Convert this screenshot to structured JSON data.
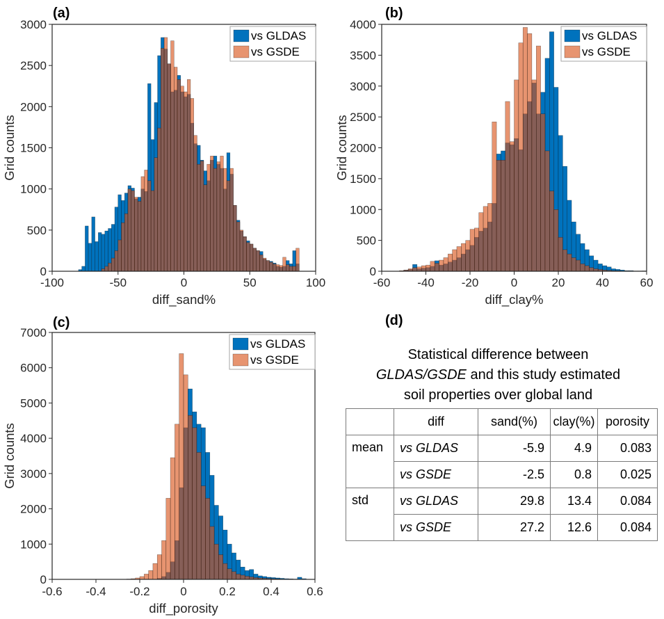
{
  "figure": {
    "background": "#ffffff",
    "axis_color": "#262626",
    "bar_edge_color": "rgba(0,0,0,0.5)",
    "legend_border_color": "#a6a6a6",
    "table_border_color": "#7a7a7a"
  },
  "chart_data": [
    {
      "type": "bar",
      "subtype": "histogram-overlay",
      "panel_label": "(a)",
      "xlabel": "diff_sand%",
      "ylabel": "Grid counts",
      "xlim": [
        -100,
        100
      ],
      "ylim": [
        0,
        3000
      ],
      "xticks": [
        -100,
        -50,
        0,
        50,
        100
      ],
      "xtick_labels": [
        "-100",
        "-50",
        "0",
        "50",
        "100"
      ],
      "yticks": [
        0,
        500,
        1000,
        1500,
        2000,
        2500,
        3000
      ],
      "grid": false,
      "legend_position": "top-right",
      "bin_start": -80,
      "bin_width": 2.5,
      "series": [
        {
          "name": "vs GLDAS",
          "color": "#0072BD",
          "opacity": 1,
          "values": [
            20,
            60,
            550,
            340,
            660,
            360,
            470,
            450,
            490,
            520,
            570,
            780,
            930,
            860,
            950,
            1040,
            1010,
            880,
            900,
            1000,
            970,
            2280,
            1600,
            2050,
            2620,
            2840,
            2700,
            2520,
            2180,
            2200,
            2380,
            2180,
            2120,
            2150,
            1800,
            1550,
            1530,
            1350,
            1220,
            1100,
            1350,
            1400,
            1300,
            1250,
            1000,
            1440,
            1180,
            800,
            620,
            490,
            420,
            370,
            330,
            280,
            250,
            240,
            150,
            130,
            120,
            100,
            60,
            50,
            60,
            130,
            90,
            250,
            90,
            0
          ]
        },
        {
          "name": "vs GSDE",
          "color": "#D95319",
          "opacity": 0.62,
          "values": [
            0,
            0,
            0,
            0,
            0,
            0,
            0,
            30,
            60,
            100,
            160,
            250,
            380,
            590,
            700,
            1000,
            980,
            900,
            850,
            1150,
            1230,
            1100,
            980,
            1380,
            1740,
            2710,
            2840,
            2520,
            2800,
            2480,
            2330,
            2250,
            2180,
            2330,
            2100,
            1650,
            1300,
            1340,
            1050,
            1300,
            1400,
            1250,
            1330,
            1400,
            1250,
            1100,
            1250,
            800,
            600,
            500,
            420,
            350,
            330,
            280,
            250,
            200,
            160,
            130,
            110,
            90,
            80,
            70,
            170,
            80,
            60,
            60,
            280,
            0
          ]
        }
      ]
    },
    {
      "type": "bar",
      "subtype": "histogram-overlay",
      "panel_label": "(b)",
      "xlabel": "diff_clay%",
      "ylabel": "Grid counts",
      "xlim": [
        -60,
        60
      ],
      "ylim": [
        0,
        4000
      ],
      "xticks": [
        -60,
        -40,
        -20,
        0,
        20,
        40,
        60
      ],
      "xtick_labels": [
        "-60",
        "-40",
        "-20",
        "0",
        "20",
        "40",
        "60"
      ],
      "yticks": [
        0,
        500,
        1000,
        1500,
        2000,
        2500,
        3000,
        3500,
        4000
      ],
      "grid": false,
      "legend_position": "top-right",
      "bin_start": -52,
      "bin_width": 2,
      "series": [
        {
          "name": "vs GLDAS",
          "color": "#0072BD",
          "opacity": 1,
          "values": [
            0,
            20,
            30,
            110,
            40,
            50,
            60,
            80,
            170,
            100,
            120,
            150,
            180,
            220,
            280,
            350,
            420,
            550,
            650,
            700,
            800,
            1100,
            1900,
            1950,
            2080,
            2050,
            2150,
            1970,
            2550,
            2750,
            3050,
            2550,
            2900,
            3450,
            3880,
            2980,
            2200,
            1700,
            1150,
            800,
            600,
            450,
            350,
            250,
            180,
            120,
            90,
            70,
            40,
            30,
            20,
            10,
            10,
            5,
            5,
            5
          ]
        },
        {
          "name": "vs GSDE",
          "color": "#D95319",
          "opacity": 0.62,
          "values": [
            10,
            20,
            40,
            60,
            70,
            90,
            100,
            160,
            130,
            180,
            220,
            280,
            350,
            400,
            450,
            500,
            680,
            700,
            950,
            1050,
            1100,
            2420,
            1800,
            1800,
            2750,
            2100,
            3100,
            3700,
            3950,
            3850,
            3100,
            3650,
            2550,
            1950,
            1300,
            1000,
            550,
            350,
            280,
            220,
            180,
            120,
            90,
            60,
            40,
            30,
            20,
            15,
            10,
            10,
            5,
            5,
            5,
            0,
            0,
            5
          ]
        }
      ]
    },
    {
      "type": "bar",
      "subtype": "histogram-overlay",
      "panel_label": "(c)",
      "xlabel": "diff_porosity",
      "ylabel": "Grid counts",
      "xlim": [
        -0.6,
        0.6
      ],
      "ylim": [
        0,
        7000
      ],
      "xticks": [
        -0.6,
        -0.4,
        -0.2,
        0,
        0.2,
        0.4,
        0.6
      ],
      "xtick_labels": [
        "-0.6",
        "-0.4",
        "-0.2",
        "0",
        "0.2",
        "0.4",
        "0.6"
      ],
      "yticks": [
        0,
        1000,
        2000,
        3000,
        4000,
        5000,
        6000,
        7000
      ],
      "grid": false,
      "legend_position": "top-right",
      "bin_start": -0.26,
      "bin_width": 0.02,
      "series": [
        {
          "name": "vs GLDAS",
          "color": "#0072BD",
          "opacity": 1,
          "values": [
            0,
            0,
            0,
            0,
            0,
            0,
            0,
            30,
            80,
            200,
            500,
            1100,
            2600,
            4300,
            5400,
            4750,
            4400,
            4300,
            3600,
            2950,
            2100,
            1800,
            1400,
            1000,
            750,
            550,
            350,
            250,
            280,
            150,
            100,
            80,
            60,
            50,
            40,
            30,
            20,
            15,
            10,
            60,
            20,
            0
          ]
        },
        {
          "name": "vs GSDE",
          "color": "#D95319",
          "opacity": 0.62,
          "values": [
            10,
            20,
            40,
            80,
            150,
            250,
            450,
            700,
            1100,
            2300,
            3450,
            4400,
            6400,
            5800,
            4650,
            4300,
            3600,
            2650,
            2300,
            1500,
            1000,
            700,
            450,
            300,
            220,
            150,
            120,
            90,
            70,
            50,
            40,
            30,
            25,
            20,
            15,
            10,
            5,
            5,
            5,
            0,
            0,
            0
          ]
        }
      ]
    },
    {
      "type": "table",
      "panel_label": "(d)",
      "title_line1": "Statistical difference between",
      "title_line2_italic": "GLDAS/GSDE",
      "title_line2_rest": " and this study estimated",
      "title_line3": "soil properties over global land",
      "columns": [
        "",
        "diff",
        "sand(%)",
        "clay(%)",
        "porosity"
      ],
      "rows": [
        [
          "mean",
          "vs GLDAS",
          "-5.9",
          "4.9",
          "0.083"
        ],
        [
          "",
          "vs GSDE",
          "-2.5",
          "0.8",
          "0.025"
        ],
        [
          "std",
          "vs GLDAS",
          "29.8",
          "13.4",
          "0.084"
        ],
        [
          "",
          "vs GSDE",
          "27.2",
          "12.6",
          "0.084"
        ]
      ]
    }
  ]
}
